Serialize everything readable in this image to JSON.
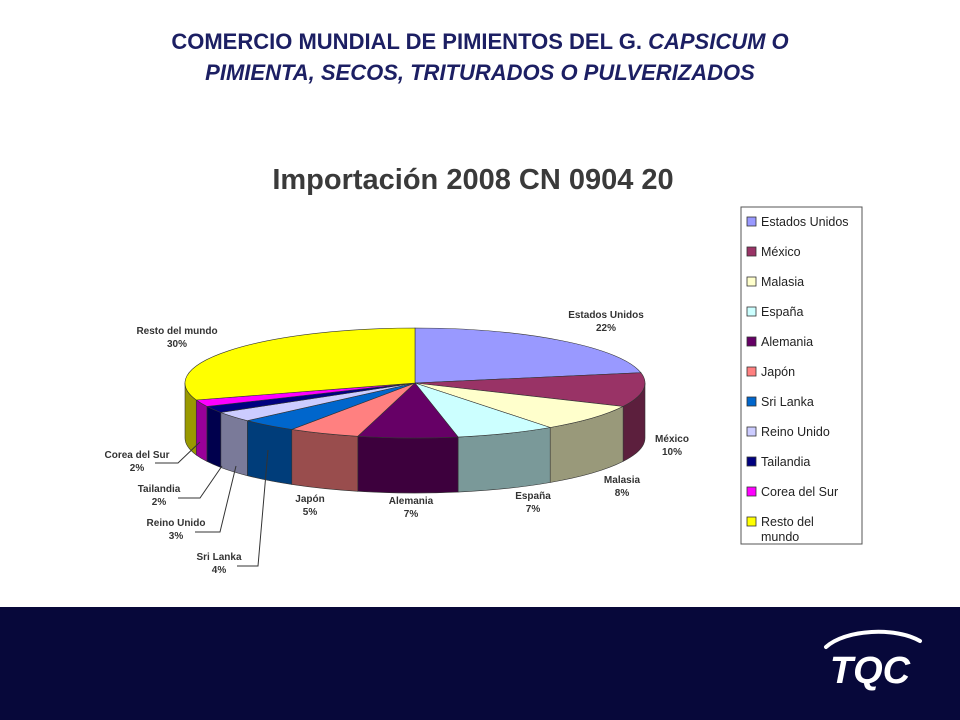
{
  "slide": {
    "title_line1_plain": "COMERCIO MUNDIAL DE PIMIENTOS DEL G. ",
    "title_line1_italic": "CAPSICUM O",
    "title_line2_italic": "PIMIENTA, SECOS, TRITURADOS O PULVERIZADOS"
  },
  "logo": {
    "text": "TQC"
  },
  "colors": {
    "title": "#1c1f63",
    "footer": "#07083a",
    "logo": "#ffffff"
  },
  "chart_data": {
    "type": "pie",
    "title": "Importación 2008 CN 0904 20",
    "legend_position": "right",
    "slices": [
      {
        "label": "Estados Unidos",
        "data_label": "Estados Unidos",
        "value": 22,
        "display": "22%",
        "color": "#9999ff"
      },
      {
        "label": "México",
        "data_label": "México",
        "value": 10,
        "display": "10%",
        "color": "#993366"
      },
      {
        "label": "Malasia",
        "data_label": "Malasia",
        "value": 8,
        "display": "8%",
        "color": "#ffffcc"
      },
      {
        "label": "España",
        "data_label": "España",
        "value": 7,
        "display": "7%",
        "color": "#ccffff"
      },
      {
        "label": "Alemania",
        "data_label": "Alemania",
        "value": 7,
        "display": "7%",
        "color": "#660066"
      },
      {
        "label": "Japón",
        "data_label": "Japón",
        "value": 5,
        "display": "5%",
        "color": "#ff8080"
      },
      {
        "label": "Sri Lanka",
        "data_label": "Sri Lanka",
        "value": 4,
        "display": "4%",
        "color": "#0066cc"
      },
      {
        "label": "Reino Unido",
        "data_label": "Reino Unido",
        "value": 3,
        "display": "3%",
        "color": "#ccccff"
      },
      {
        "label": "Tailandia",
        "data_label": "Tailandia",
        "value": 2,
        "display": "2%",
        "color": "#000080"
      },
      {
        "label": "Corea del Sur",
        "data_label": "Corea del Sur",
        "value": 2,
        "display": "2%",
        "color": "#ff00ff"
      },
      {
        "label": "Resto del mundo",
        "data_label": "Resto del mundo",
        "value": 30,
        "display": "30%",
        "color": "#ffff00"
      }
    ]
  }
}
